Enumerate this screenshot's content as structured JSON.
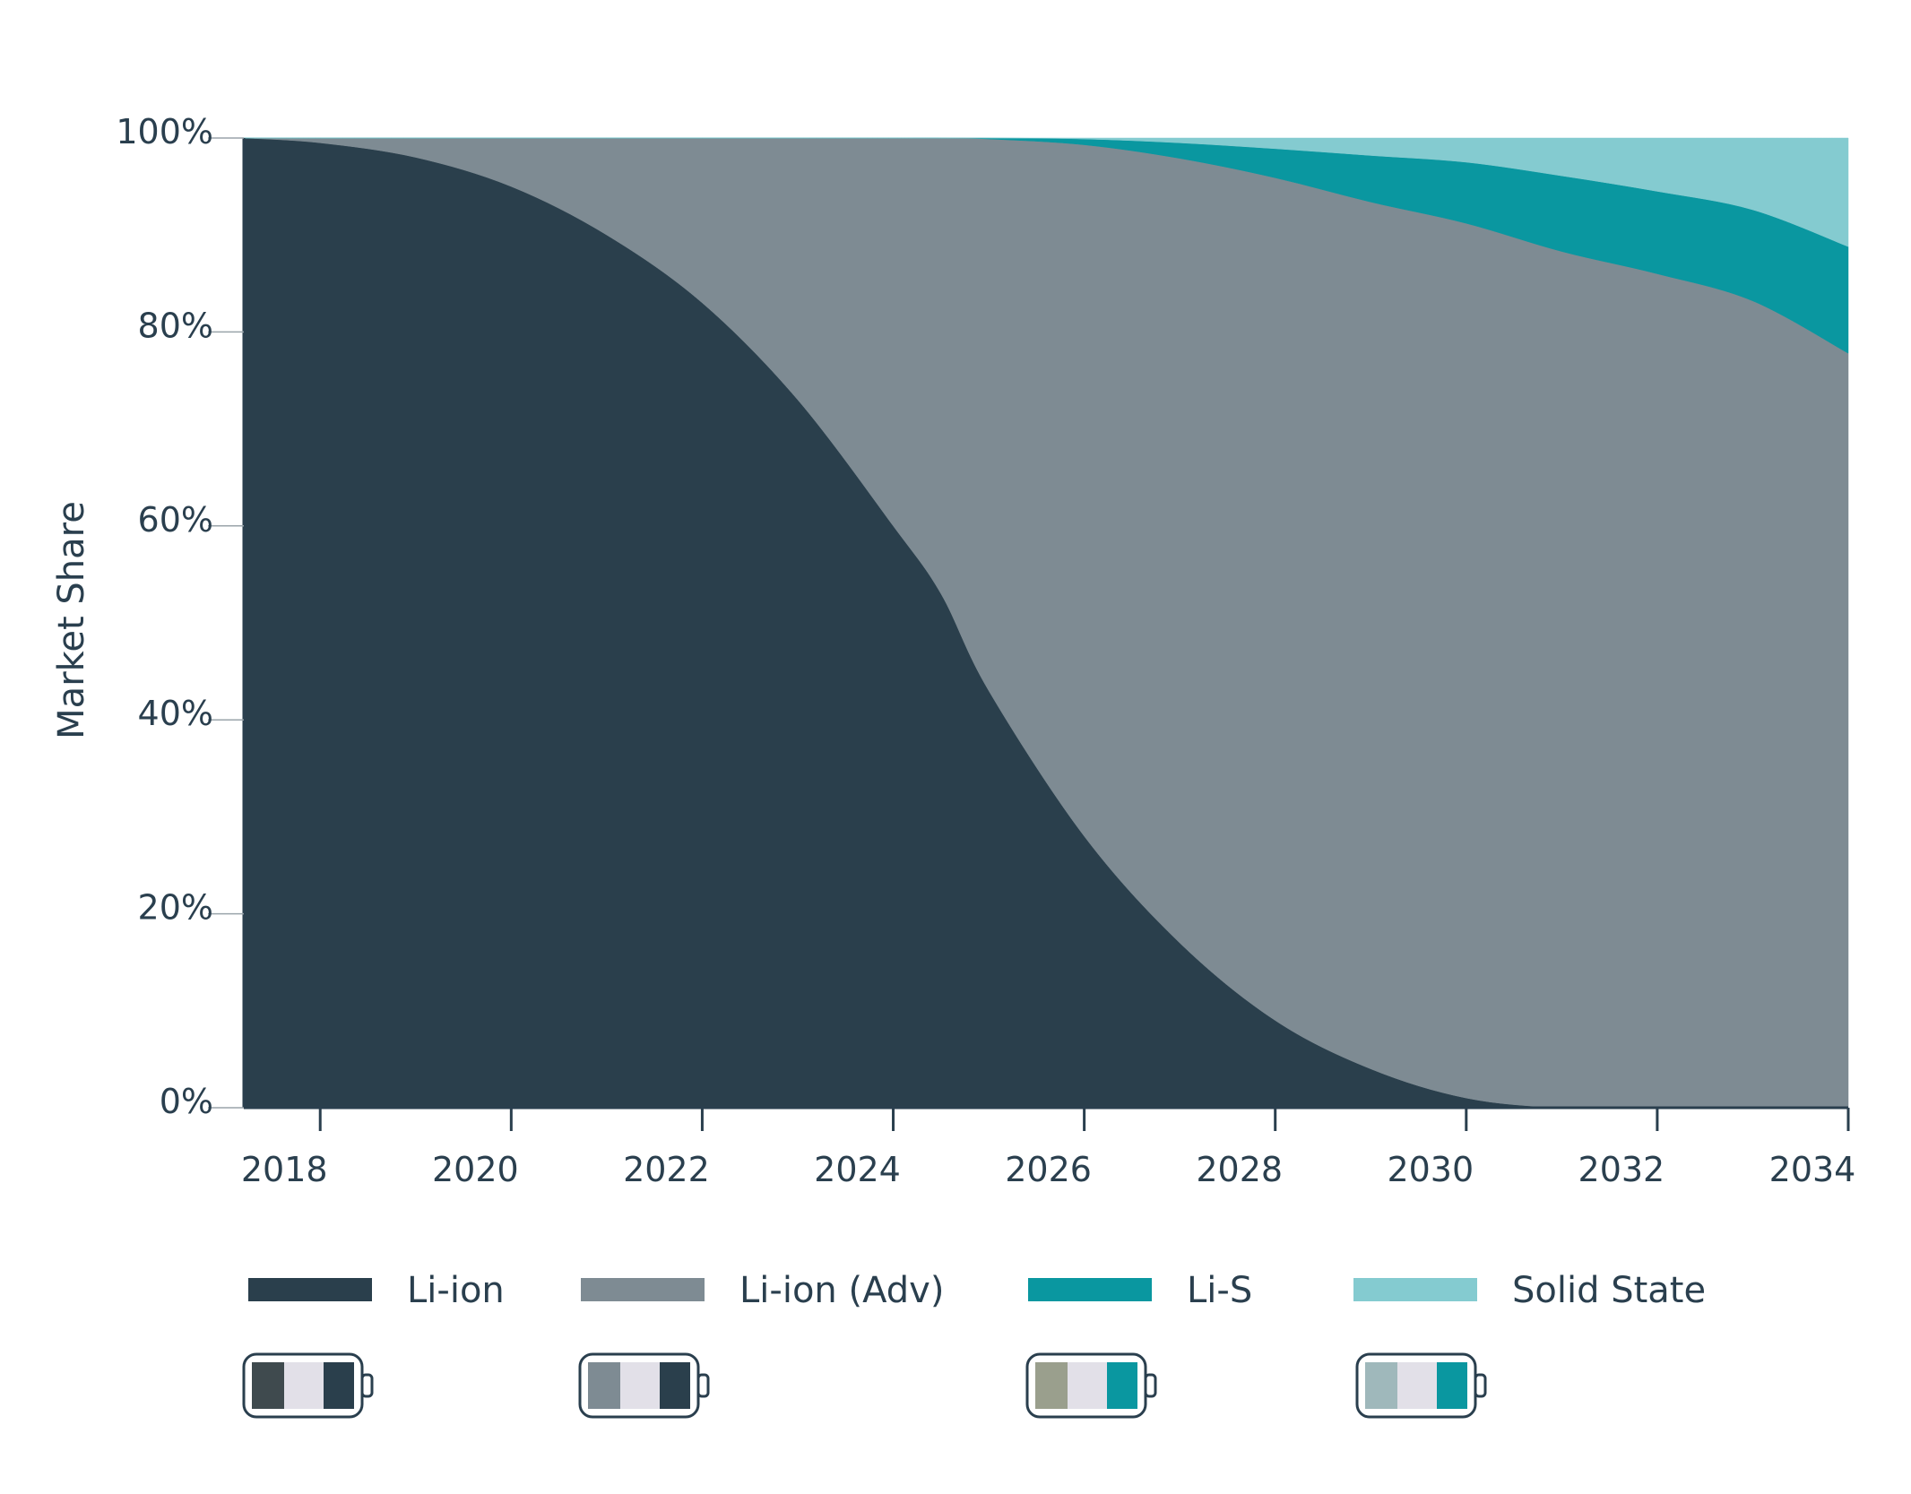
{
  "chart_data": {
    "type": "area",
    "stacked": true,
    "normalized": true,
    "title": "",
    "xlabel": "",
    "ylabel": "Market Share",
    "x": [
      2017.2,
      2018,
      2019,
      2020,
      2021,
      2022,
      2023,
      2024,
      2024.5,
      2025,
      2026,
      2027,
      2028,
      2029,
      2030,
      2031,
      2032,
      2033,
      2034
    ],
    "x_ticks": [
      "2018",
      "2020",
      "2022",
      "2024",
      "2026",
      "2028",
      "2030",
      "2032",
      "2034"
    ],
    "y_ticks": [
      "0%",
      "20%",
      "40%",
      "60%",
      "80%",
      "100%"
    ],
    "ylim": [
      0,
      100
    ],
    "xlim": [
      2017.2,
      2034
    ],
    "grid": false,
    "legend_position": "bottom",
    "series": [
      {
        "name": "Li-ion",
        "color": "#2a3f4c",
        "values": [
          100,
          99.5,
          98,
          95,
          90,
          83,
          73,
          60,
          53,
          43,
          28,
          17,
          9,
          4,
          1,
          0,
          0,
          0,
          0
        ]
      },
      {
        "name": "Li-ion (Adv)",
        "color": "#7e8b93",
        "values": [
          0,
          0.5,
          2,
          5,
          10,
          17,
          27,
          40,
          47,
          56.9,
          71.3,
          80.9,
          86.9,
          89.4,
          90.2,
          88.3,
          86.0,
          83.2,
          77.8
        ]
      },
      {
        "name": "Li-S",
        "color": "#0a97a0",
        "values": [
          0,
          0,
          0,
          0,
          0,
          0,
          0,
          0,
          0,
          0.1,
          0.6,
          1.6,
          3.0,
          4.8,
          6.3,
          7.8,
          8.5,
          9.4,
          11.0
        ]
      },
      {
        "name": "Solid State",
        "color": "#84cbd0",
        "values": [
          0,
          0,
          0,
          0,
          0,
          0,
          0,
          0,
          0,
          0,
          0.1,
          0.5,
          1.1,
          1.8,
          2.5,
          3.9,
          5.5,
          7.4,
          11.2
        ]
      }
    ]
  },
  "legend_icons": [
    {
      "name": "battery-li-ion-icon",
      "colors": [
        "#3f4a4e",
        "#e2e0e8",
        "#2a3f4c"
      ]
    },
    {
      "name": "battery-li-ion-adv-icon",
      "colors": [
        "#7e8b93",
        "#e2e0e8",
        "#2a3f4c"
      ]
    },
    {
      "name": "battery-li-s-icon",
      "colors": [
        "#9a9f8d",
        "#e2e0e8",
        "#0a97a0"
      ]
    },
    {
      "name": "battery-solid-state-icon",
      "colors": [
        "#9fb8bb",
        "#e2e0e8",
        "#0a97a0"
      ]
    }
  ]
}
